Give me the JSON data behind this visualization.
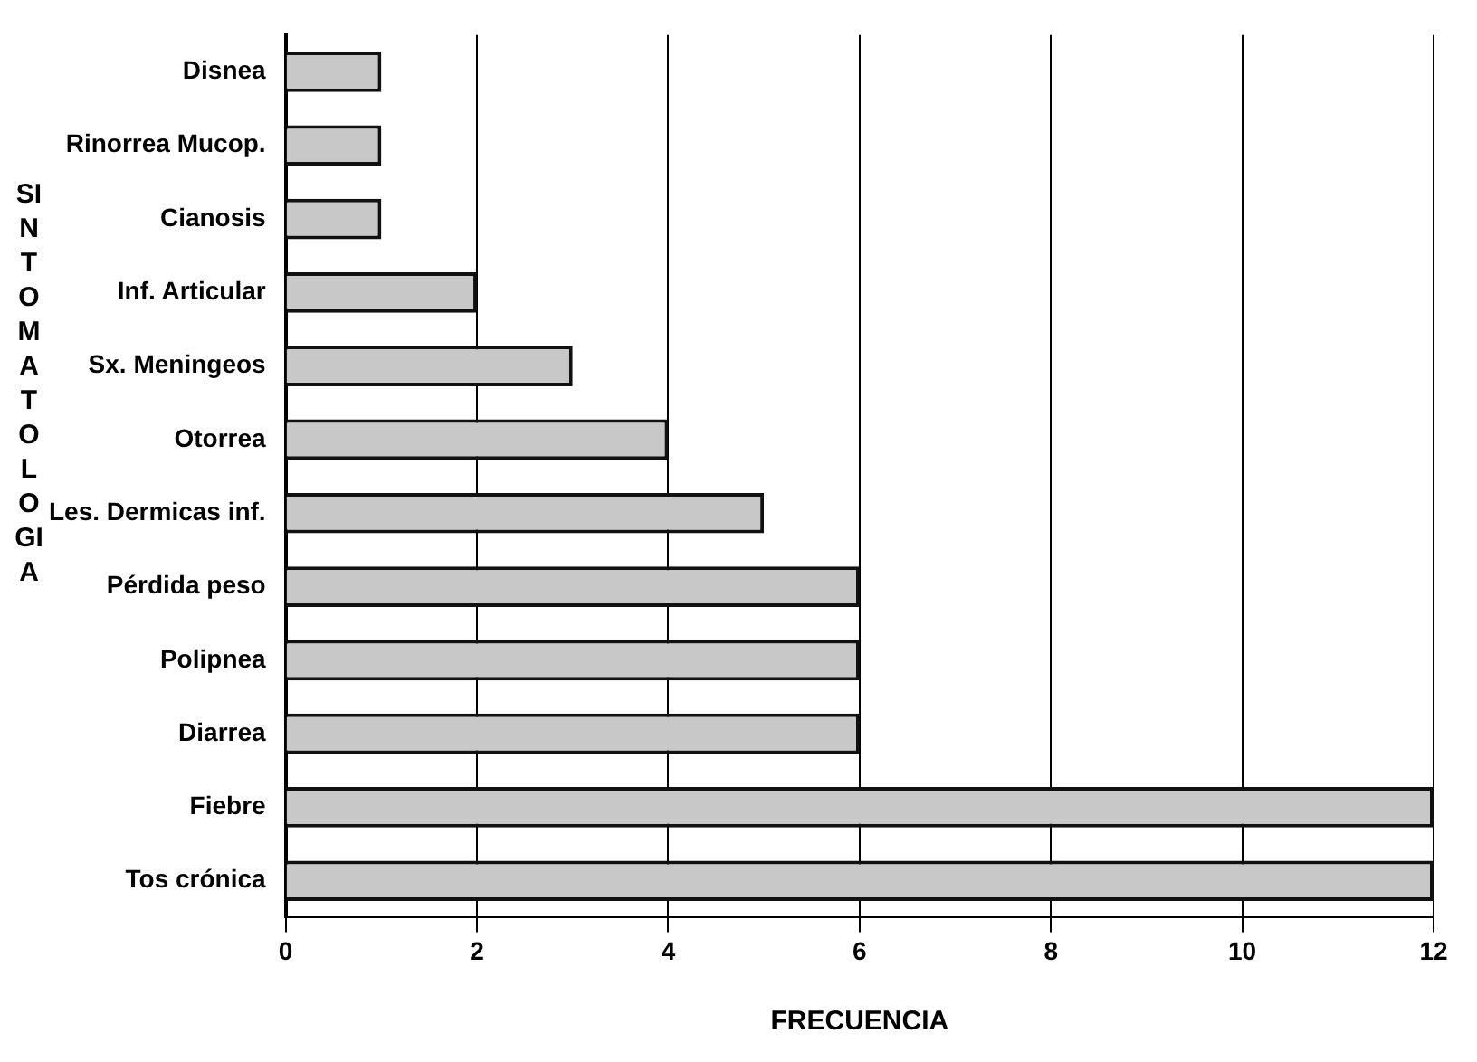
{
  "chart_data": {
    "type": "bar",
    "orientation": "horizontal",
    "xlabel": "FRECUENCIA",
    "ylabel": "SINTOMATOLOGIA",
    "categories": [
      "Disnea",
      "Rinorrea Mucop.",
      "Cianosis",
      "Inf. Articular",
      "Sx. Meningeos",
      "Otorrea",
      "Les. Dermicas inf.",
      "Pérdida peso",
      "Polipnea",
      "Diarrea",
      "Fiebre",
      "Tos crónica"
    ],
    "values": [
      1,
      1,
      1,
      2,
      3,
      4,
      5,
      6,
      6,
      6,
      12,
      12
    ],
    "color": "#c8c8c8",
    "xlim": [
      0,
      12
    ],
    "xticks": [
      0,
      2,
      4,
      6,
      8,
      10,
      12
    ],
    "grid": "x",
    "legend": false
  }
}
